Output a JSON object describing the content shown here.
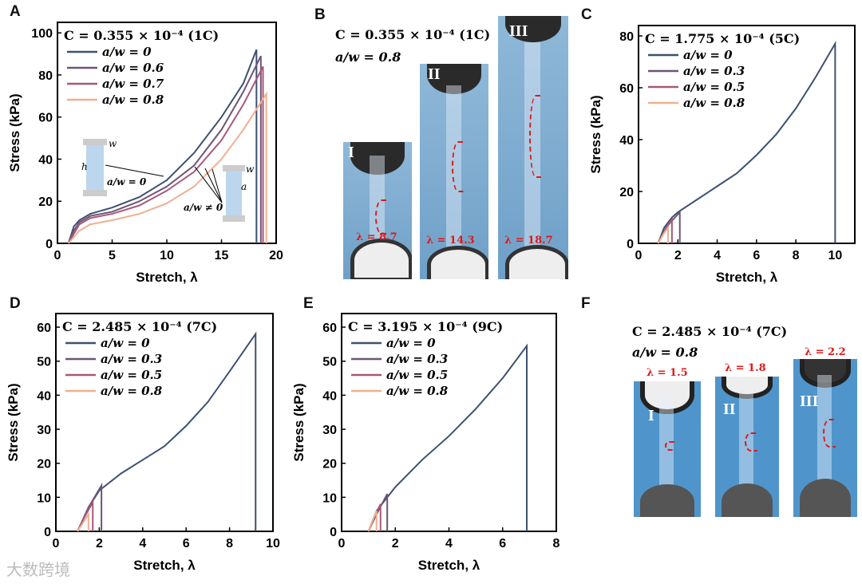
{
  "panels": [
    "A",
    "B",
    "C",
    "D",
    "E",
    "F"
  ],
  "colors": [
    "#3d5170",
    "#6d5577",
    "#a85878",
    "#efb090"
  ],
  "chart_data": [
    {
      "type": "line",
      "panel": "A",
      "title": "C = 0.355 × 10⁻⁴ (1C)",
      "xlabel": "Stretch, λ",
      "ylabel": "Stress (kPa)",
      "xlim": [
        0,
        20
      ],
      "ylim": [
        0,
        105
      ],
      "xticks": [
        0,
        5,
        10,
        15,
        20
      ],
      "yticks": [
        0,
        20,
        40,
        60,
        80,
        100
      ],
      "series": [
        {
          "name": "a/w = 0",
          "points": [
            [
              1,
              0
            ],
            [
              1.5,
              8
            ],
            [
              2,
              11
            ],
            [
              3,
              14
            ],
            [
              5,
              17
            ],
            [
              7.5,
              22
            ],
            [
              10,
              30
            ],
            [
              12.5,
              43
            ],
            [
              15,
              60
            ],
            [
              17,
              76
            ],
            [
              18.2,
              92
            ],
            [
              18.2,
              0
            ]
          ]
        },
        {
          "name": "a/w = 0.6",
          "points": [
            [
              1,
              0
            ],
            [
              1.5,
              6
            ],
            [
              2,
              10
            ],
            [
              3,
              13
            ],
            [
              5,
              15
            ],
            [
              7.5,
              20
            ],
            [
              10,
              27
            ],
            [
              12.5,
              37
            ],
            [
              15,
              54
            ],
            [
              17,
              72
            ],
            [
              18.6,
              89
            ],
            [
              18.6,
              0
            ]
          ]
        },
        {
          "name": "a/w = 0.7",
          "points": [
            [
              1,
              0
            ],
            [
              2,
              9
            ],
            [
              3,
              12
            ],
            [
              5,
              14
            ],
            [
              7.5,
              18
            ],
            [
              10,
              25
            ],
            [
              12.5,
              34
            ],
            [
              15,
              49
            ],
            [
              17,
              66
            ],
            [
              18.8,
              84
            ],
            [
              18.8,
              0
            ]
          ]
        },
        {
          "name": "a/w = 0.8",
          "points": [
            [
              1,
              0
            ],
            [
              2,
              6
            ],
            [
              3,
              9
            ],
            [
              5,
              11
            ],
            [
              7.5,
              14
            ],
            [
              10,
              19
            ],
            [
              12.5,
              27
            ],
            [
              15,
              40
            ],
            [
              17,
              54
            ],
            [
              19.1,
              71
            ],
            [
              19.1,
              0
            ]
          ]
        }
      ],
      "annotations": [
        "a/w = 0",
        "a/w ≠ 0",
        "w",
        "h",
        "a"
      ]
    },
    {
      "type": "line",
      "panel": "C",
      "title": "C = 1.775 × 10⁻⁴ (5C)",
      "xlabel": "Stretch, λ",
      "ylabel": "Stress (kPa)",
      "xlim": [
        0,
        11
      ],
      "ylim": [
        0,
        84
      ],
      "xticks": [
        0,
        2,
        4,
        6,
        8,
        10
      ],
      "yticks": [
        0,
        20,
        40,
        60,
        80
      ],
      "series": [
        {
          "name": "a/w = 0",
          "points": [
            [
              1,
              0
            ],
            [
              1.3,
              6
            ],
            [
              1.7,
              10
            ],
            [
              2,
              12
            ],
            [
              3,
              17
            ],
            [
              4,
              22
            ],
            [
              5,
              27
            ],
            [
              6,
              34
            ],
            [
              7,
              42
            ],
            [
              8,
              52
            ],
            [
              9,
              64
            ],
            [
              10,
              77
            ],
            [
              10,
              0
            ]
          ]
        },
        {
          "name": "a/w = 0.3",
          "points": [
            [
              1,
              0
            ],
            [
              1.5,
              7
            ],
            [
              2.1,
              12
            ],
            [
              2.1,
              0
            ]
          ]
        },
        {
          "name": "a/w = 0.5",
          "points": [
            [
              1,
              0
            ],
            [
              1.4,
              6
            ],
            [
              1.7,
              9
            ],
            [
              1.7,
              0
            ]
          ]
        },
        {
          "name": "a/w = 0.8",
          "points": [
            [
              1,
              0
            ],
            [
              1.3,
              4
            ],
            [
              1.5,
              6
            ],
            [
              1.5,
              0
            ]
          ]
        }
      ]
    },
    {
      "type": "line",
      "panel": "D",
      "title": "C = 2.485 × 10⁻⁴ (7C)",
      "xlabel": "Stretch, λ",
      "ylabel": "Stress (kPa)",
      "xlim": [
        0,
        10
      ],
      "ylim": [
        0,
        64
      ],
      "xticks": [
        0,
        2,
        4,
        6,
        8,
        10
      ],
      "yticks": [
        0,
        10,
        20,
        30,
        40,
        50,
        60
      ],
      "series": [
        {
          "name": "a/w = 0",
          "points": [
            [
              1,
              0
            ],
            [
              1.5,
              7
            ],
            [
              2,
              12
            ],
            [
              3,
              17
            ],
            [
              4,
              21
            ],
            [
              5,
              25
            ],
            [
              6,
              31
            ],
            [
              7,
              38
            ],
            [
              8,
              47
            ],
            [
              9.2,
              58
            ],
            [
              9.2,
              0
            ]
          ]
        },
        {
          "name": "a/w = 0.3",
          "points": [
            [
              1,
              0
            ],
            [
              1.5,
              7
            ],
            [
              2.1,
              13.5
            ],
            [
              2.1,
              0
            ]
          ]
        },
        {
          "name": "a/w = 0.5",
          "points": [
            [
              1,
              0
            ],
            [
              1.3,
              4
            ],
            [
              1.7,
              8.5
            ],
            [
              1.7,
              0
            ]
          ]
        },
        {
          "name": "a/w = 0.8",
          "points": [
            [
              1,
              0
            ],
            [
              1.3,
              3
            ],
            [
              1.5,
              5
            ],
            [
              1.5,
              0
            ]
          ]
        }
      ]
    },
    {
      "type": "line",
      "panel": "E",
      "title": "C = 3.195 × 10⁻⁴ (9C)",
      "xlabel": "Stretch, λ",
      "ylabel": "Stress (kPa)",
      "xlim": [
        0,
        8
      ],
      "ylim": [
        0,
        64
      ],
      "xticks": [
        0,
        2,
        4,
        6,
        8
      ],
      "yticks": [
        0,
        10,
        20,
        30,
        40,
        50,
        60
      ],
      "series": [
        {
          "name": "a/w = 0",
          "points": [
            [
              1,
              0
            ],
            [
              1.3,
              6
            ],
            [
              1.7,
              10
            ],
            [
              2,
              13
            ],
            [
              3,
              21
            ],
            [
              4,
              28
            ],
            [
              5,
              36
            ],
            [
              6,
              45
            ],
            [
              6.9,
              54.5
            ],
            [
              6.9,
              0
            ]
          ]
        },
        {
          "name": "a/w = 0.3",
          "points": [
            [
              1,
              0
            ],
            [
              1.3,
              5
            ],
            [
              1.7,
              11
            ],
            [
              1.7,
              0
            ]
          ]
        },
        {
          "name": "a/w = 0.5",
          "points": [
            [
              1,
              0
            ],
            [
              1.2,
              4
            ],
            [
              1.45,
              8
            ],
            [
              1.45,
              0
            ]
          ]
        },
        {
          "name": "a/w = 0.8",
          "points": [
            [
              1,
              0
            ],
            [
              1.15,
              3
            ],
            [
              1.3,
              6
            ],
            [
              1.3,
              0
            ]
          ]
        }
      ]
    }
  ],
  "photoB": {
    "title": "C = 0.355 × 10⁻⁴ (1C)",
    "subtitle": "a/w = 0.8",
    "frames": [
      {
        "roman": "I",
        "lambda": "λ = 8.7"
      },
      {
        "roman": "II",
        "lambda": "λ = 14.3"
      },
      {
        "roman": "III",
        "lambda": "λ = 18.7"
      }
    ]
  },
  "photoF": {
    "title": "C = 2.485 × 10⁻⁴ (7C)",
    "subtitle": "a/w = 0.8",
    "frames": [
      {
        "roman": "I",
        "lambda": "λ = 1.5"
      },
      {
        "roman": "II",
        "lambda": "λ = 1.8"
      },
      {
        "roman": "III",
        "lambda": "λ = 2.2"
      }
    ]
  },
  "watermark": "大数跨境"
}
